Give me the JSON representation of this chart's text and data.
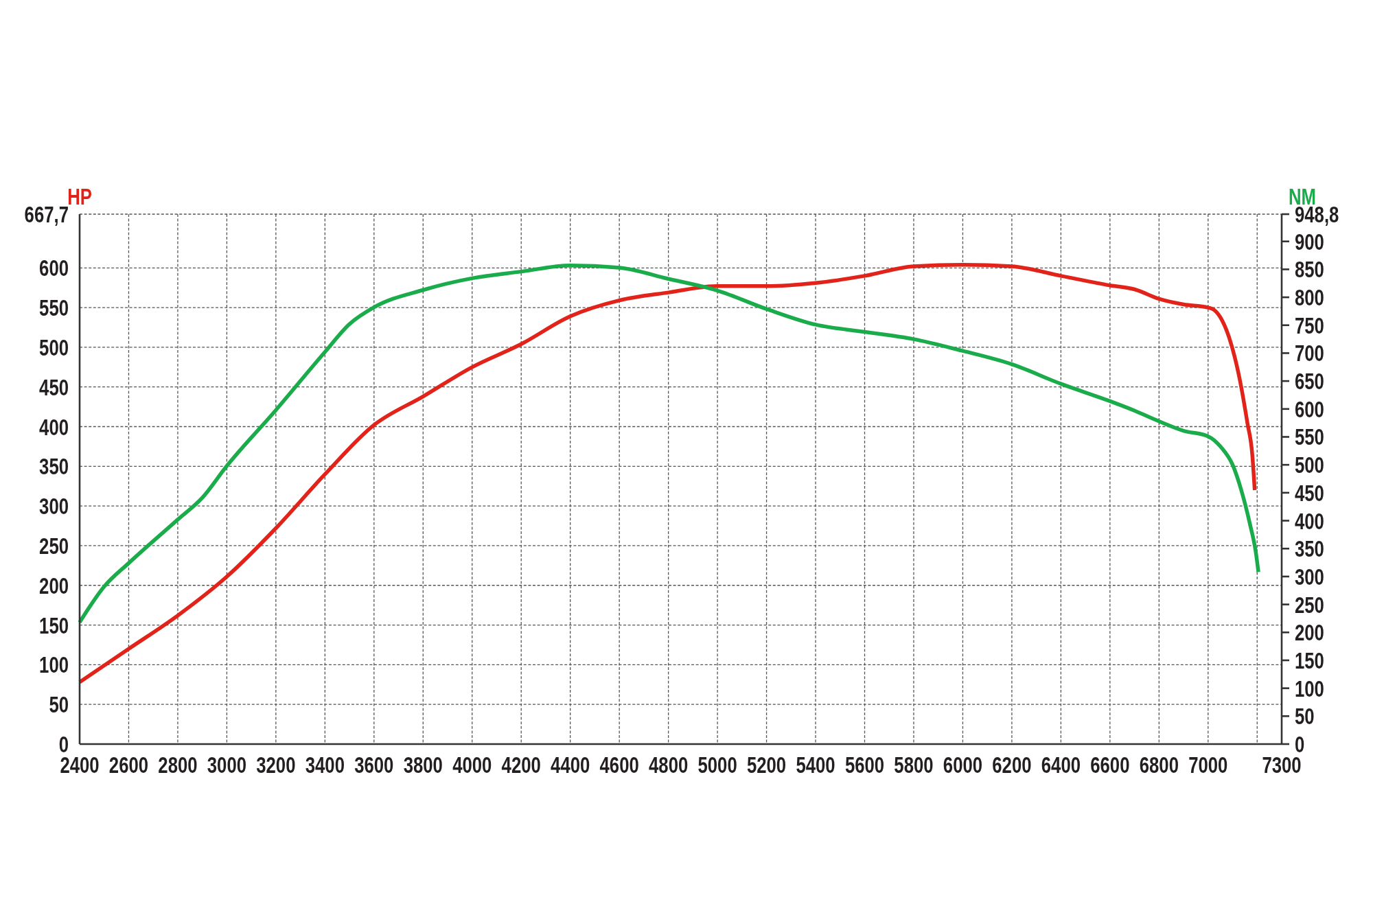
{
  "chart_data": {
    "type": "line",
    "ylabel": "HP",
    "y2label": "NM",
    "xlim": [
      2400,
      7300
    ],
    "xticks": [
      2400,
      2600,
      2800,
      3000,
      3200,
      3400,
      3600,
      3800,
      4000,
      4200,
      4400,
      4600,
      4800,
      5000,
      5200,
      5400,
      5600,
      5800,
      6000,
      6200,
      6400,
      6600,
      6800,
      7000,
      {
        "value": 7200,
        "label": null
      },
      7300
    ],
    "ylim": [
      0,
      667.7
    ],
    "yticks": [
      0,
      50,
      100,
      150,
      200,
      250,
      300,
      350,
      400,
      450,
      500,
      550,
      600,
      {
        "value": 667.7,
        "label": "667,7"
      }
    ],
    "y2lim": [
      0,
      948.8
    ],
    "y2ticks": [
      0,
      50,
      100,
      150,
      200,
      250,
      300,
      350,
      400,
      450,
      500,
      550,
      600,
      650,
      700,
      750,
      800,
      850,
      900,
      {
        "value": 948.8,
        "label": "948,8"
      }
    ],
    "grid": true,
    "series": [
      {
        "color": "#e2231a",
        "axis": "y",
        "x": [
          2400,
          2600,
          2800,
          3000,
          3200,
          3400,
          3600,
          3800,
          4000,
          4200,
          4400,
          4600,
          4800,
          5000,
          5200,
          5400,
          5600,
          5800,
          6000,
          6200,
          6400,
          6600,
          6700,
          6800,
          6900,
          7000,
          7025,
          7055,
          7095,
          7130,
          7160,
          7180,
          7190
        ],
        "values": [
          78,
          120,
          162,
          211,
          272,
          340,
          402,
          438,
          475,
          504,
          539,
          559,
          569,
          577,
          577,
          581,
          590,
          602,
          604,
          602,
          590,
          578,
          573,
          561,
          554,
          550,
          547,
          535,
          503,
          458,
          405,
          365,
          320
        ]
      },
      {
        "color": "#1aab4b",
        "axis": "y2",
        "x": [
          2400,
          2500,
          2600,
          2800,
          2900,
          3000,
          3200,
          3400,
          3500,
          3600,
          3800,
          4000,
          4200,
          4400,
          4600,
          4800,
          5000,
          5200,
          5400,
          5600,
          5800,
          6000,
          6200,
          6400,
          6600,
          6700,
          6800,
          6900,
          7000,
          7050,
          7100,
          7135,
          7170,
          7195,
          7205
        ],
        "values": [
          218,
          282,
          324,
          402,
          441,
          498,
          598,
          702,
          752,
          782,
          813,
          834,
          846,
          857,
          853,
          833,
          812,
          779,
          751,
          738,
          725,
          704,
          680,
          645,
          614,
          597,
          578,
          561,
          551,
          533,
          500,
          455,
          395,
          342,
          308
        ]
      }
    ]
  }
}
